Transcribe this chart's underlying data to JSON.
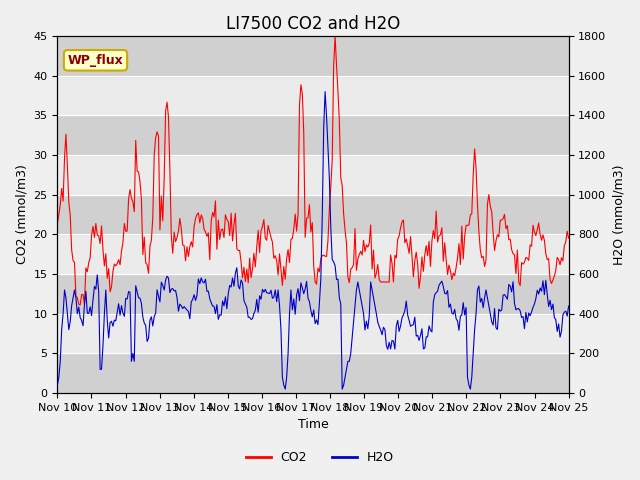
{
  "title": "LI7500 CO2 and H2O",
  "xlabel": "Time",
  "ylabel_left": "CO2 (mmol/m3)",
  "ylabel_right": "H2O (mmol/m3)",
  "ylim_left": [
    0,
    45
  ],
  "ylim_right": [
    0,
    1800
  ],
  "xlim": [
    0,
    360
  ],
  "x_tick_labels": [
    "Nov 10",
    "Nov 11",
    "Nov 12",
    "Nov 13",
    "Nov 14",
    "Nov 15",
    "Nov 16",
    "Nov 17",
    "Nov 18",
    "Nov 19",
    "Nov 20",
    "Nov 21",
    "Nov 22",
    "Nov 23",
    "Nov 24",
    "Nov 25"
  ],
  "x_tick_positions": [
    0,
    24,
    48,
    72,
    96,
    120,
    144,
    168,
    192,
    216,
    240,
    264,
    288,
    312,
    336,
    360
  ],
  "co2_color": "#ff0000",
  "h2o_color": "#0000cc",
  "background_color": "#f0f0f0",
  "plot_bg_color": "#e8e8e8",
  "legend_label_co2": "CO2",
  "legend_label_h2o": "H2O",
  "wp_flux_label": "WP_flux",
  "wp_flux_bg": "#ffffcc",
  "wp_flux_border": "#ccaa00",
  "title_fontsize": 12,
  "axis_label_fontsize": 9,
  "tick_fontsize": 8
}
